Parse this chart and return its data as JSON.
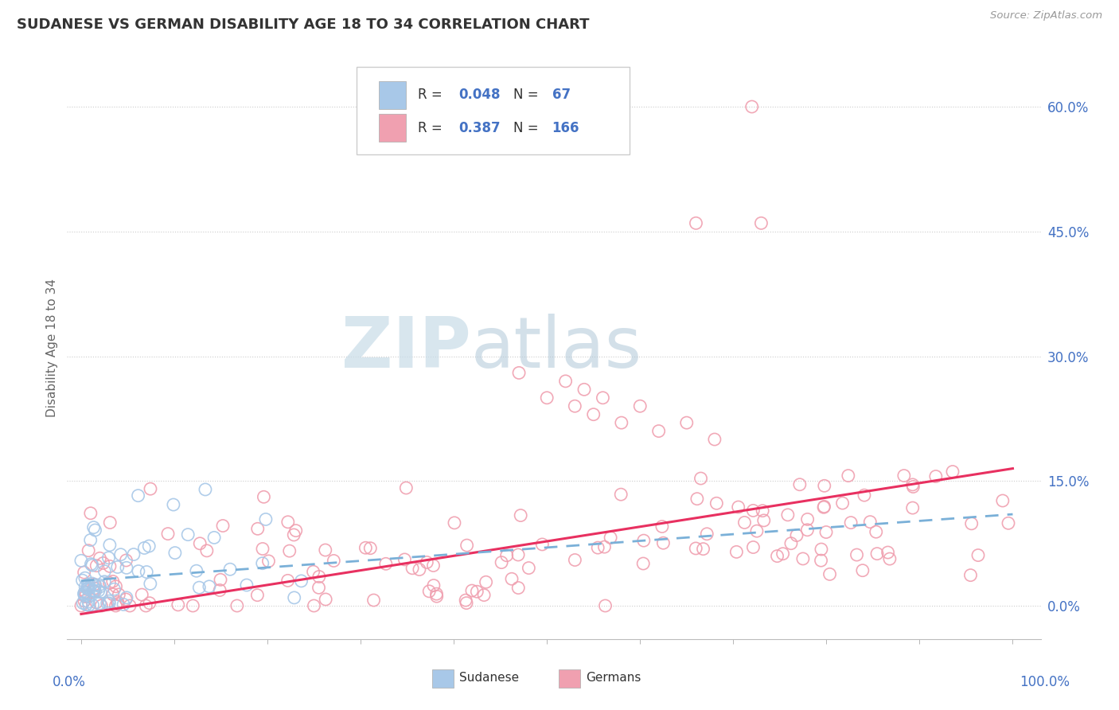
{
  "title": "SUDANESE VS GERMAN DISABILITY AGE 18 TO 34 CORRELATION CHART",
  "source": "Source: ZipAtlas.com",
  "ylabel": "Disability Age 18 to 34",
  "yticks": [
    0.0,
    0.15,
    0.3,
    0.45,
    0.6
  ],
  "ytick_labels": [
    "0.0%",
    "15.0%",
    "30.0%",
    "45.0%",
    "60.0%"
  ],
  "blue_color": "#a8c8e8",
  "pink_color": "#f0a0b0",
  "trend_blue_color": "#7ab0d8",
  "trend_pink_color": "#e83060",
  "watermark_zip_color": "#c8dce8",
  "watermark_atlas_color": "#b0c8d8"
}
